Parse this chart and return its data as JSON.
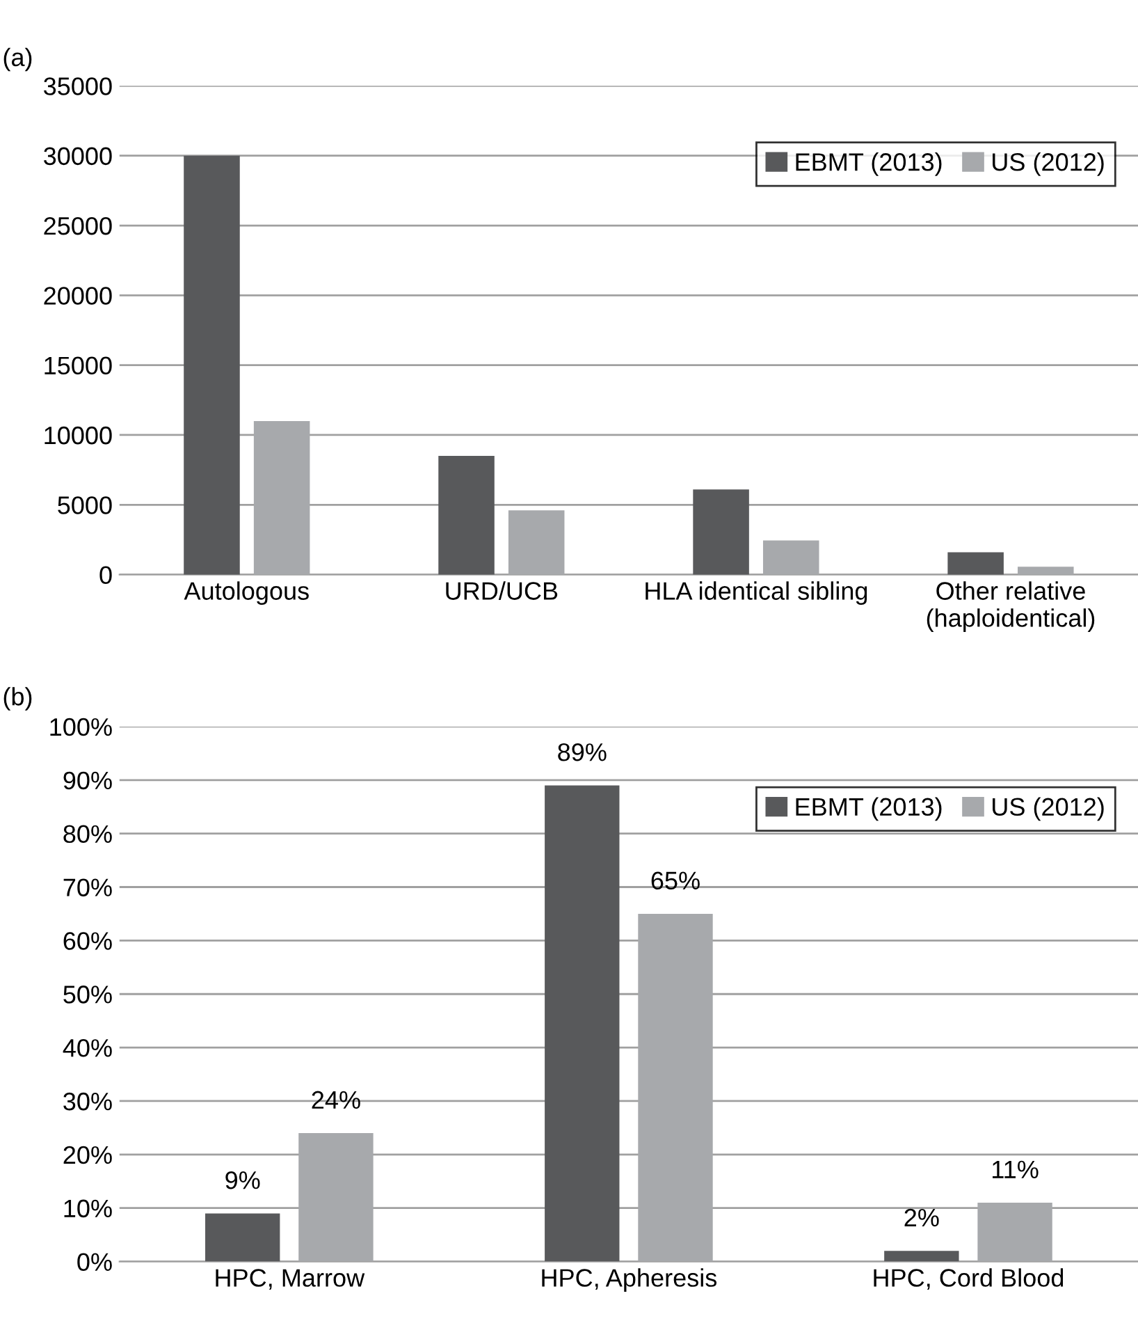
{
  "chart_data": [
    {
      "type": "bar",
      "title": "(a)",
      "categories": [
        "Autologous",
        "URD/UCB",
        "HLA identical sibling",
        "Other relative\n(haploidentical)"
      ],
      "series": [
        {
          "name": "EBMT (2013)",
          "color": "#58595b",
          "values": [
            30000,
            8500,
            6100,
            1600
          ]
        },
        {
          "name": "US (2012)",
          "color": "#a7a9ac",
          "values": [
            11000,
            4600,
            2450,
            570
          ]
        }
      ],
      "ylim": [
        0,
        35000
      ],
      "yticks": [
        0,
        5000,
        10000,
        15000,
        20000,
        25000,
        30000,
        35000
      ],
      "grid": "y",
      "legend": "top right"
    },
    {
      "type": "bar",
      "title": "(b)",
      "categories": [
        "HPC, Marrow",
        "HPC, Apheresis",
        "HPC, Cord Blood"
      ],
      "series": [
        {
          "name": "EBMT (2013)",
          "color": "#58595b",
          "values": [
            9,
            89,
            2
          ],
          "value_labels": [
            "9%",
            "89%",
            "2%"
          ]
        },
        {
          "name": "US (2012)",
          "color": "#a7a9ac",
          "values": [
            24,
            65,
            11
          ],
          "value_labels": [
            "24%",
            "65%",
            "11%"
          ]
        }
      ],
      "ylim": [
        0,
        100
      ],
      "yticks": [
        {
          "value": 0,
          "label": "0%"
        },
        {
          "value": 10,
          "label": "10%"
        },
        {
          "value": 20,
          "label": "20%"
        },
        {
          "value": 30,
          "label": "30%"
        },
        {
          "value": 40,
          "label": "40%"
        },
        {
          "value": 50,
          "label": "50%"
        },
        {
          "value": 60,
          "label": "60%"
        },
        {
          "value": 70,
          "label": "70%"
        },
        {
          "value": 80,
          "label": "80%"
        },
        {
          "value": 90,
          "label": "90%"
        },
        {
          "value": 100,
          "label": "100%"
        }
      ],
      "grid": "y",
      "legend": "top right"
    }
  ]
}
